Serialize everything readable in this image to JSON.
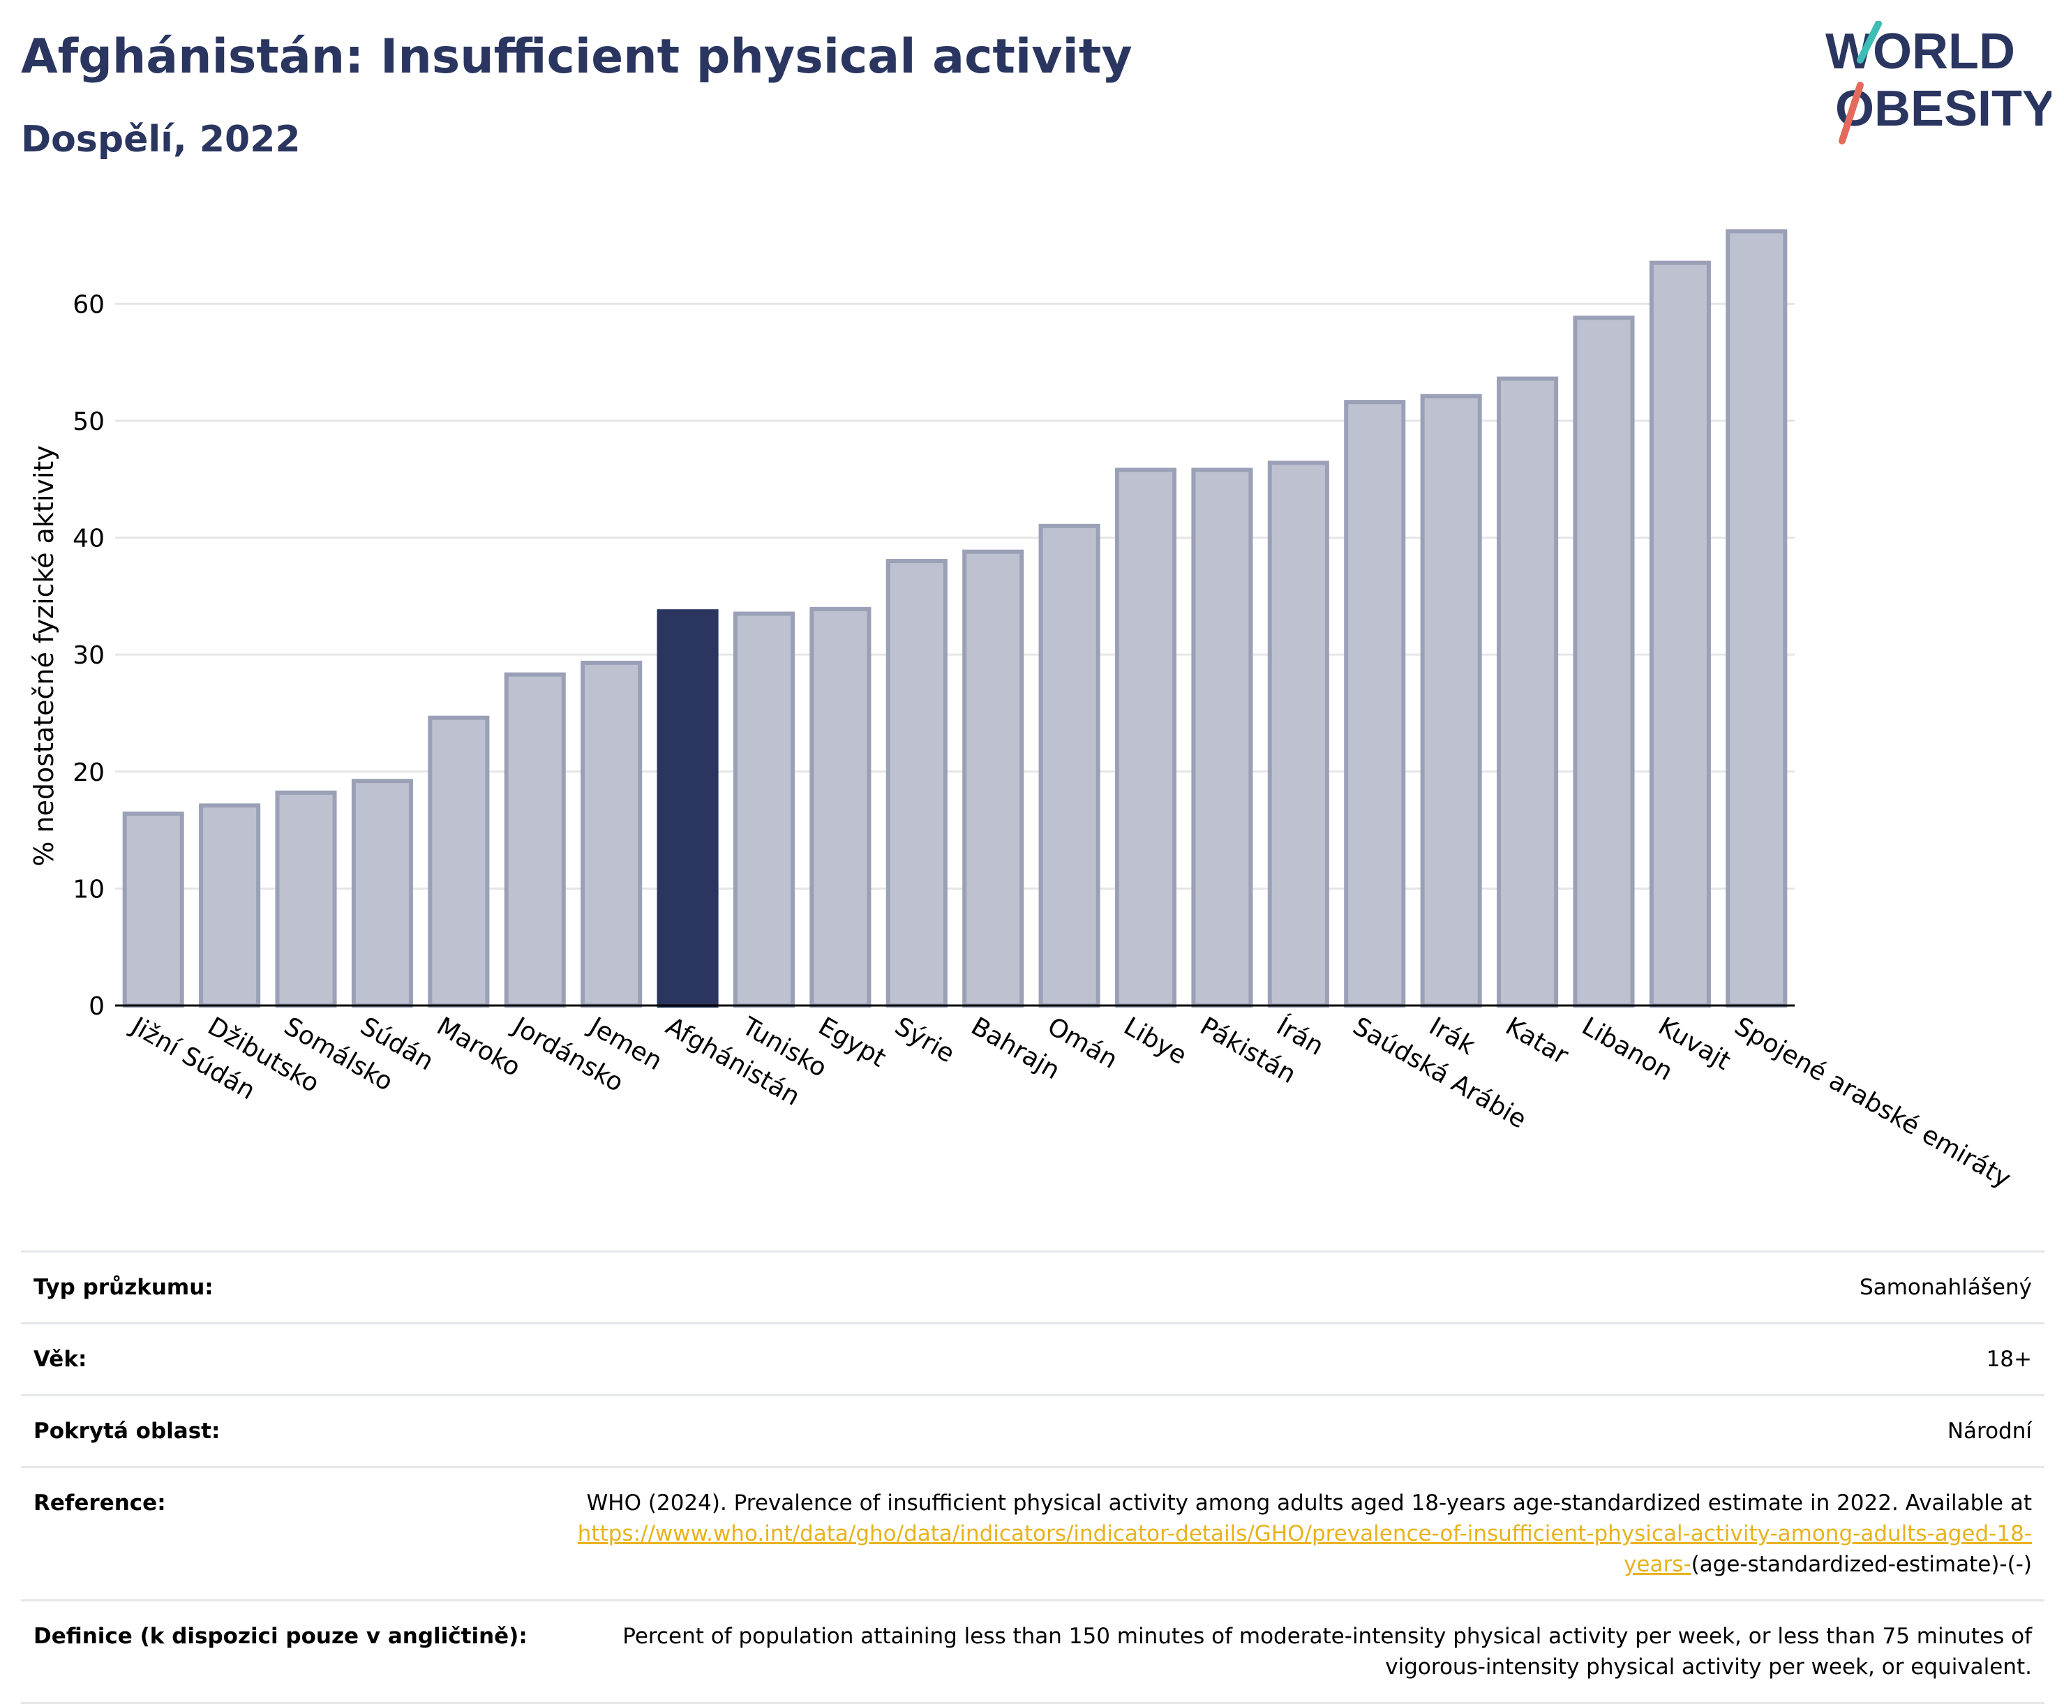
{
  "header": {
    "title": "Afghánistán: Insufficient physical activity",
    "subtitle": "Dospělí, 2022"
  },
  "logo": {
    "line1": "WORLD",
    "line2": "OBESITY"
  },
  "colors": {
    "highlight": "#2a3660",
    "bar": "#bec2d0",
    "bar_border": "#9aa0b6",
    "grid": "#e6e6e6",
    "accent_teal": "#3dbdb5",
    "accent_red": "#e46b5c",
    "link": "#e8b21c"
  },
  "chart_data": {
    "type": "bar",
    "ylabel": "% nedostatečné fyzické aktivity",
    "xlabel": "",
    "ylim": [
      0,
      67
    ],
    "yticks": [
      0,
      10,
      20,
      30,
      40,
      50,
      60
    ],
    "grid": true,
    "highlight_category": "Afghánistán",
    "categories": [
      "Jižní Súdán",
      "Džibutsko",
      "Somálsko",
      "Súdán",
      "Maroko",
      "Jordánsko",
      "Jemen",
      "Afghánistán",
      "Tunisko",
      "Egypt",
      "Sýrie",
      "Bahrajn",
      "Omán",
      "Libye",
      "Pákistán",
      "Írán",
      "Saúdská Arábie",
      "Irák",
      "Katar",
      "Libanon",
      "Kuvajt",
      "Spojené arabské emiráty"
    ],
    "values": [
      16.4,
      17.1,
      18.2,
      19.2,
      24.6,
      28.3,
      29.3,
      33.7,
      33.5,
      33.9,
      38.0,
      38.8,
      41.0,
      45.8,
      45.8,
      46.4,
      51.6,
      52.1,
      53.6,
      58.8,
      63.5,
      66.2
    ]
  },
  "info": {
    "survey_type": {
      "label": "Typ průzkumu:",
      "value": "Samonahlášený"
    },
    "age": {
      "label": "Věk:",
      "value": "18+"
    },
    "coverage": {
      "label": "Pokrytá oblast:",
      "value": "Národní"
    },
    "reference": {
      "label": "Reference:",
      "text": "WHO (2024). Prevalence of insufficient physical activity among adults aged 18-years age-standardized estimate in 2022. Available at",
      "link": "https://www.who.int/data/gho/data/indicators/indicator-details/GHO/prevalence-of-insufficient-physical-activity-among-adults-aged-18-years-",
      "suffix": "(age-standardized-estimate)-(-)"
    },
    "definition": {
      "label": "Definice (k dispozici pouze v angličtině):",
      "value": "Percent of population attaining less than 150 minutes of moderate-intensity physical activity per week, or less than 75 minutes of vigorous-intensity physical activity per week, or equivalent."
    }
  }
}
